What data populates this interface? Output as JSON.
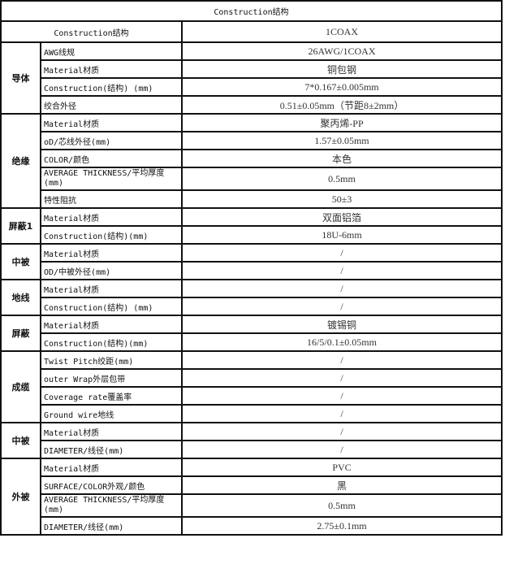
{
  "title": "Construction结构",
  "header": {
    "label": "Construction结构",
    "value": "1COAX"
  },
  "groups": [
    {
      "name": "导体",
      "rows": [
        {
          "label": "AWG线规",
          "value": "26AWG/1COAX"
        },
        {
          "label": "Material材质",
          "value": "铜包钢"
        },
        {
          "label": "Construction(结构)  (mm)",
          "value": "7*0.167±0.005mm"
        },
        {
          "label": "绞合外径",
          "value": "0.51±0.05mm（节距8±2mm）"
        }
      ]
    },
    {
      "name": "绝缘",
      "rows": [
        {
          "label": "Material材质",
          "value": "聚丙烯-PP"
        },
        {
          "label": "oD/芯线外径(mm)",
          "value": "1.57±0.05mm"
        },
        {
          "label": "COLOR/颜色",
          "value": "本色"
        },
        {
          "label": "AVERAGE THICKNESS/平均厚度(mm)",
          "value": "0.5mm",
          "tall": true
        },
        {
          "label": "特性阻抗",
          "value": "50±3"
        }
      ]
    },
    {
      "name": "屏蔽1",
      "rows": [
        {
          "label": "Material材质",
          "value": "双面铝箔"
        },
        {
          "label": "Construction(结构)(mm)",
          "value": "18U-6mm"
        }
      ]
    },
    {
      "name": "中被",
      "rows": [
        {
          "label": "Material材质",
          "value": "/"
        },
        {
          "label": "OD/中被外径(mm)",
          "value": "/"
        }
      ]
    },
    {
      "name": "地线",
      "rows": [
        {
          "label": "Material材质",
          "value": "/"
        },
        {
          "label": "Construction(结构)  (mm)",
          "value": "/"
        }
      ]
    },
    {
      "name": "屏蔽",
      "rows": [
        {
          "label": "Material材质",
          "value": "镀锡铜"
        },
        {
          "label": "Construction(结构)(mm)",
          "value": "16/5/0.1±0.05mm"
        }
      ]
    },
    {
      "name": "成缆",
      "rows": [
        {
          "label": "Twist Pitch绞距(mm)",
          "value": "/"
        },
        {
          "label": "outer Wrap外层包带",
          "value": "/"
        },
        {
          "label": "Coverage rate覆盖率",
          "value": "/"
        },
        {
          "label": "Ground wire地线",
          "value": "/"
        }
      ]
    },
    {
      "name": "中被",
      "rows": [
        {
          "label": "Material材质",
          "value": "/"
        },
        {
          "label": "DIAMETER/线径(mm)",
          "value": "/"
        }
      ]
    },
    {
      "name": "外被",
      "rows": [
        {
          "label": "Material材质",
          "value": "PVC"
        },
        {
          "label": "SURFACE/COLOR外观/颜色",
          "value": "黑"
        },
        {
          "label": "AVERAGE THICKNESS/平均厚度(mm)",
          "value": "0.5mm",
          "tall": true
        },
        {
          "label": "DIAMETER/线径(mm)",
          "value": "2.75±0.1mm"
        }
      ]
    }
  ]
}
